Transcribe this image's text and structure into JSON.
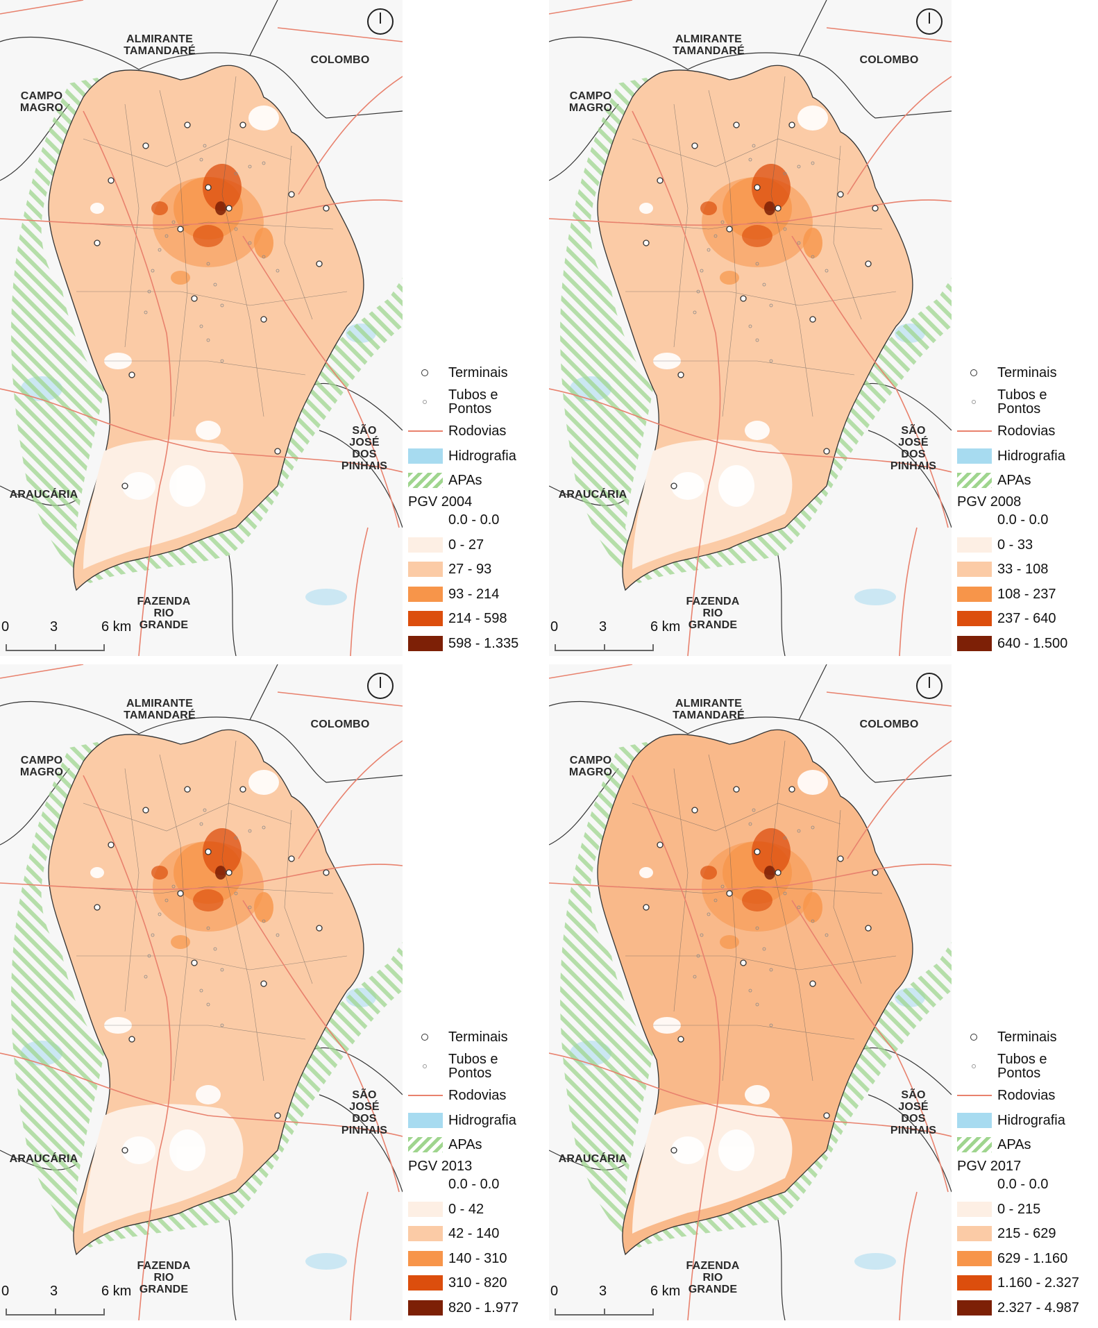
{
  "place_names": {
    "almirante": "ALMIRANTE TAMANDARÉ",
    "colombo": "COLOMBO",
    "campo_magro": "CAMPO MAGRO",
    "sao_jose": "SÃO JOSÉ DOS PINHAIS",
    "araucaria": "ARAUCÁRIA",
    "fazenda": "FAZENDA RIO GRANDE"
  },
  "legend_common": {
    "terminais": "Terminais",
    "tubos": "Tubos e Pontos",
    "rodovias": "Rodovias",
    "hidrografia": "Hidrografia",
    "apas": "APAs"
  },
  "scale": {
    "zero": "0",
    "three": "3",
    "six": "6 km"
  },
  "colors": {
    "class_0": "#ffffff",
    "class_1": "#fdefe4",
    "class_2": "#fbcba6",
    "class_3": "#f7954a",
    "class_4": "#dc4e0d",
    "class_5": "#7d2006",
    "hidrografia": "#a7dbf0",
    "apas": "#9fd58e",
    "rodovias": "#e8816d",
    "terminal": "#333333",
    "boundary": "#333333"
  },
  "maps": [
    {
      "pgv_title": "PGV 2004",
      "classes": [
        "0.0 - 0.0",
        "0 - 27",
        "27 - 93",
        "93 - 214",
        "214 - 598",
        "598 - 1.335"
      ]
    },
    {
      "pgv_title": "PGV 2008",
      "classes": [
        "0.0 - 0.0",
        "0 - 33",
        "33 - 108",
        "108 - 237",
        "237 - 640",
        "640 - 1.500"
      ]
    },
    {
      "pgv_title": "PGV 2013",
      "classes": [
        "0.0 - 0.0",
        "0 - 42",
        "42 - 140",
        "140 - 310",
        "310 - 820",
        "820 - 1.977"
      ]
    },
    {
      "pgv_title": "PGV 2017",
      "classes": [
        "0.0 - 0.0",
        "0 - 215",
        "215 - 629",
        "629 - 1.160",
        "1.160 - 2.327",
        "2.327 - 4.987"
      ]
    }
  ]
}
